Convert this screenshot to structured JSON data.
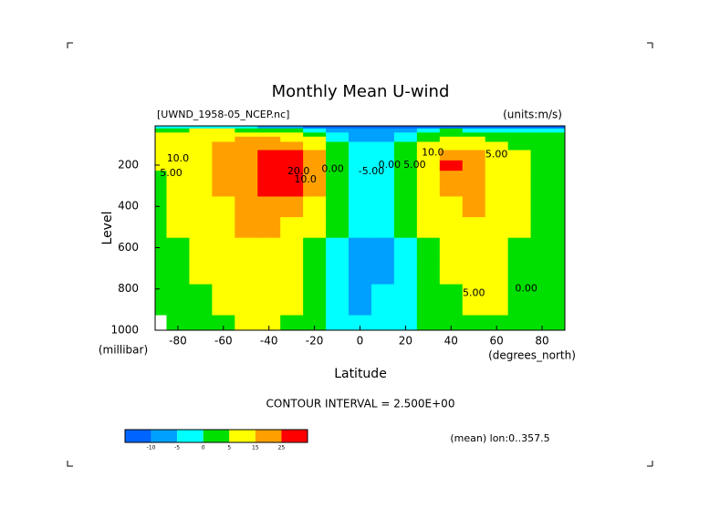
{
  "chart_data": {
    "type": "contour",
    "title": "Monthly Mean U-wind",
    "subtitle": "[UWND_1958-05_NCEP.nc]",
    "units": "(units:m/s)",
    "ylabel": "Level",
    "yunit": "(millibar)",
    "xlabel": "Latitude",
    "xunit": "(degrees_north)",
    "contour_interval": "CONTOUR INTERVAL = 2.500E+00",
    "footnote": "(mean) lon:0..357.5",
    "x": [
      -90,
      -80,
      -70,
      -60,
      -50,
      -40,
      -30,
      -20,
      -10,
      0,
      10,
      20,
      30,
      40,
      50,
      60,
      70,
      80,
      90
    ],
    "y": [
      1000,
      850,
      700,
      600,
      500,
      400,
      300,
      250,
      200,
      150,
      100,
      70,
      50,
      30,
      10
    ],
    "z": [
      [
        null,
        1,
        2,
        4,
        6,
        6,
        3,
        0,
        -3,
        -4,
        -3,
        -2,
        0,
        2,
        4,
        3,
        1,
        0,
        0
      ],
      [
        1,
        2,
        4,
        6,
        8,
        8,
        5,
        1,
        -3,
        -6,
        -5,
        -3,
        0,
        3,
        5,
        5,
        2,
        1,
        0
      ],
      [
        2,
        3,
        5,
        8,
        10,
        10,
        7,
        2,
        -2,
        -6,
        -6,
        -3,
        1,
        5,
        7,
        6,
        3,
        2,
        1
      ],
      [
        2,
        4,
        6,
        10,
        13,
        13,
        10,
        3,
        -1,
        -6,
        -6,
        -2,
        3,
        7,
        9,
        7,
        4,
        3,
        1
      ],
      [
        3,
        5,
        8,
        12,
        16,
        17,
        14,
        6,
        0,
        -5,
        -5,
        0,
        5,
        10,
        12,
        9,
        5,
        3,
        1
      ],
      [
        3,
        6,
        10,
        14,
        19,
        22,
        19,
        10,
        1,
        -4,
        -4,
        1,
        8,
        14,
        15,
        11,
        6,
        3,
        1
      ],
      [
        4,
        7,
        11,
        16,
        22,
        28,
        26,
        15,
        3,
        -3,
        -3,
        3,
        12,
        20,
        18,
        12,
        6,
        3,
        1
      ],
      [
        4,
        8,
        12,
        17,
        24,
        31,
        30,
        18,
        4,
        -3,
        -2,
        4,
        14,
        24,
        19,
        12,
        6,
        3,
        1
      ],
      [
        5,
        8,
        12,
        17,
        24,
        31,
        32,
        18,
        4,
        -2,
        -2,
        4,
        14,
        26,
        18,
        11,
        6,
        3,
        2
      ],
      [
        6,
        9,
        12,
        17,
        22,
        28,
        28,
        15,
        2,
        -3,
        -3,
        2,
        11,
        22,
        15,
        9,
        5,
        3,
        2
      ],
      [
        8,
        10,
        13,
        16,
        19,
        21,
        19,
        10,
        0,
        -4,
        -4,
        0,
        7,
        13,
        10,
        6,
        4,
        2,
        2
      ],
      [
        8,
        10,
        12,
        14,
        15,
        15,
        12,
        5,
        -2,
        -6,
        -6,
        -2,
        3,
        7,
        6,
        4,
        3,
        2,
        2
      ],
      [
        6,
        8,
        10,
        11,
        11,
        10,
        7,
        2,
        -4,
        -8,
        -8,
        -4,
        0,
        3,
        3,
        2,
        1,
        1,
        1
      ],
      [
        3,
        4,
        5,
        5,
        4,
        3,
        1,
        -2,
        -6,
        -10,
        -10,
        -6,
        -2,
        0,
        -1,
        -2,
        -3,
        -3,
        -3
      ],
      [
        -2,
        -2,
        -3,
        -4,
        -5,
        -7,
        -9,
        -12,
        -15,
        -18,
        -18,
        -15,
        -12,
        -12,
        -13,
        -14,
        -15,
        -15,
        -15
      ]
    ],
    "xlim": [
      -90,
      90
    ],
    "ylim": [
      1000,
      10
    ],
    "xticks": [
      -80,
      -60,
      -40,
      -20,
      0,
      20,
      40,
      60,
      80
    ],
    "yticks": [
      200,
      400,
      600,
      800,
      1000
    ],
    "levels": [
      -10,
      -5,
      0,
      5,
      15,
      25
    ],
    "colors": [
      "#0064ff",
      "#00a0ff",
      "#00ffff",
      "#00e000",
      "#ffff00",
      "#ffa000",
      "#ff0000"
    ],
    "contour_labels": [
      {
        "text": "10.0",
        "x": -80,
        "y": 170
      },
      {
        "text": "5.00",
        "x": -83,
        "y": 240
      },
      {
        "text": "20.0",
        "x": -27,
        "y": 230
      },
      {
        "text": "10.0",
        "x": -24,
        "y": 270
      },
      {
        "text": "0.00",
        "x": -12,
        "y": 220
      },
      {
        "text": "-5.00",
        "x": 5,
        "y": 230
      },
      {
        "text": "0.00",
        "x": 13,
        "y": 200
      },
      {
        "text": "5.00",
        "x": 24,
        "y": 200
      },
      {
        "text": "10.0",
        "x": 32,
        "y": 140
      },
      {
        "text": "5.00",
        "x": 60,
        "y": 150
      },
      {
        "text": "5.00",
        "x": 50,
        "y": 820
      },
      {
        "text": "0.00",
        "x": 73,
        "y": 800
      }
    ]
  }
}
